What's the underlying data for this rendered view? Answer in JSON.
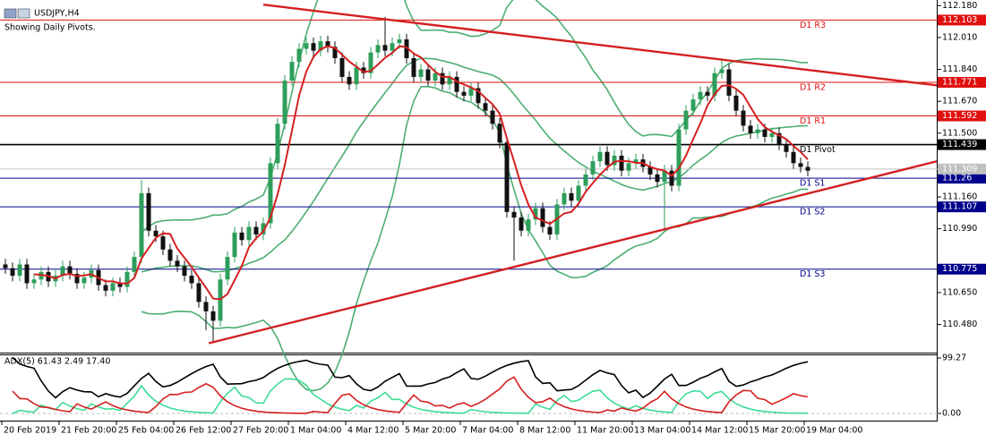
{
  "chart_data": {
    "type": "candlestick",
    "title": "USDJPY,H4",
    "subtitle": "Showing Daily Pivots.",
    "colors": {
      "bull": "#2e9e5b",
      "bear": "#111111",
      "ma": "#d42020",
      "bands": "#4cae72",
      "trend": "#d42020",
      "adx": "#000000",
      "plus_di": "#3ddc97",
      "minus_di": "#d42020"
    },
    "categories": [
      "20 Feb 2019",
      null,
      null,
      null,
      null,
      null,
      null,
      null,
      "21 Feb 20:00",
      null,
      null,
      null,
      null,
      null,
      null,
      null,
      "25 Feb 04:00",
      null,
      null,
      null,
      null,
      null,
      null,
      null,
      "26 Feb 12:00",
      null,
      null,
      null,
      null,
      null,
      null,
      null,
      "27 Feb 20:00",
      null,
      null,
      null,
      null,
      null,
      null,
      null,
      "1 Mar 04:00",
      null,
      null,
      null,
      null,
      null,
      null,
      null,
      "4 Mar 12:00",
      null,
      null,
      null,
      null,
      null,
      null,
      null,
      "5 Mar 20:00",
      null,
      null,
      null,
      null,
      null,
      null,
      null,
      "7 Mar 04:00",
      null,
      null,
      null,
      null,
      null,
      null,
      null,
      "8 Mar 12:00",
      null,
      null,
      null,
      null,
      null,
      null,
      null,
      "11 Mar 20:00",
      null,
      null,
      null,
      null,
      null,
      null,
      null,
      "13 Mar 04:00",
      null,
      null,
      null,
      null,
      null,
      null,
      null,
      "14 Mar 12:00",
      null,
      null,
      null,
      null,
      null,
      null,
      null,
      "15 Mar 20:00",
      null,
      null,
      null,
      null,
      null,
      null,
      null,
      "19 Mar 04:00"
    ],
    "open": [
      110.8,
      110.78,
      110.74,
      110.8,
      110.7,
      110.72,
      110.76,
      110.71,
      110.74,
      110.79,
      110.75,
      110.7,
      110.73,
      110.77,
      110.69,
      110.66,
      110.7,
      110.68,
      110.76,
      110.84,
      111.18,
      110.98,
      110.95,
      110.88,
      110.82,
      110.79,
      110.74,
      110.7,
      110.6,
      110.55,
      110.5,
      110.72,
      110.84,
      110.97,
      110.93,
      111.0,
      110.96,
      111.02,
      111.34,
      111.55,
      111.78,
      111.88,
      111.95,
      111.98,
      111.94,
      111.99,
      111.96,
      111.9,
      111.8,
      111.76,
      111.85,
      111.82,
      111.93,
      111.97,
      111.94,
      111.98,
      112.0,
      111.9,
      111.8,
      111.84,
      111.78,
      111.82,
      111.76,
      111.8,
      111.72,
      111.7,
      111.74,
      111.66,
      111.62,
      111.55,
      111.45,
      111.08,
      111.05,
      110.98,
      111.04,
      111.1,
      111.0,
      110.96,
      111.12,
      111.18,
      111.14,
      111.22,
      111.28,
      111.35,
      111.4,
      111.33,
      111.38,
      111.3,
      111.34,
      111.36,
      111.32,
      111.28,
      111.24,
      111.3,
      111.22,
      111.52,
      111.62,
      111.68,
      111.72,
      111.7,
      111.82,
      111.84,
      111.7,
      111.62,
      111.54,
      111.5,
      111.52,
      111.48,
      111.5,
      111.44,
      111.4,
      111.34,
      111.32
    ],
    "high": [
      110.83,
      110.81,
      110.83,
      110.83,
      110.75,
      110.79,
      110.79,
      110.77,
      110.82,
      110.82,
      110.78,
      110.76,
      110.8,
      110.8,
      110.72,
      110.73,
      110.73,
      110.79,
      110.87,
      111.25,
      111.21,
      111.01,
      110.98,
      110.91,
      110.85,
      110.82,
      110.77,
      110.73,
      110.63,
      110.58,
      110.75,
      110.87,
      111.0,
      111.0,
      111.03,
      111.03,
      111.05,
      111.37,
      111.58,
      111.81,
      111.91,
      111.98,
      112.01,
      112.01,
      112.02,
      112.02,
      111.99,
      111.93,
      111.83,
      111.88,
      111.88,
      111.96,
      112.0,
      112.12,
      112.01,
      112.03,
      112.03,
      111.93,
      111.87,
      111.87,
      111.85,
      111.85,
      111.83,
      111.83,
      111.75,
      111.77,
      111.77,
      111.69,
      111.65,
      111.58,
      111.48,
      111.11,
      111.08,
      111.07,
      111.13,
      111.13,
      111.03,
      111.15,
      111.21,
      111.21,
      111.25,
      111.31,
      111.38,
      111.43,
      111.43,
      111.41,
      111.41,
      111.37,
      111.39,
      111.39,
      111.35,
      111.31,
      111.33,
      111.33,
      111.55,
      111.65,
      111.71,
      111.75,
      111.75,
      111.85,
      111.9,
      111.87,
      111.73,
      111.65,
      111.57,
      111.55,
      111.55,
      111.53,
      111.53,
      111.47,
      111.43,
      111.37,
      111.35
    ],
    "low": [
      110.75,
      110.71,
      110.71,
      110.67,
      110.67,
      110.69,
      110.68,
      110.68,
      110.71,
      110.72,
      110.67,
      110.67,
      110.7,
      110.66,
      110.63,
      110.63,
      110.65,
      110.65,
      110.73,
      110.81,
      110.95,
      110.92,
      110.85,
      110.79,
      110.76,
      110.71,
      110.67,
      110.57,
      110.45,
      110.38,
      110.47,
      110.69,
      110.81,
      110.9,
      110.9,
      110.93,
      110.93,
      110.99,
      111.31,
      111.52,
      111.75,
      111.85,
      111.92,
      111.91,
      111.91,
      111.93,
      111.87,
      111.77,
      111.73,
      111.73,
      111.79,
      111.79,
      111.9,
      111.91,
      111.91,
      111.95,
      111.87,
      111.77,
      111.77,
      111.75,
      111.75,
      111.73,
      111.73,
      111.69,
      111.67,
      111.67,
      111.63,
      111.59,
      111.52,
      111.42,
      111.05,
      110.82,
      110.95,
      110.95,
      111.01,
      110.97,
      110.93,
      110.93,
      111.09,
      111.11,
      111.11,
      111.19,
      111.25,
      111.32,
      111.3,
      111.3,
      111.27,
      111.27,
      111.31,
      111.29,
      111.25,
      111.21,
      110.98,
      111.19,
      111.19,
      111.49,
      111.59,
      111.65,
      111.67,
      111.67,
      111.79,
      111.67,
      111.59,
      111.51,
      111.47,
      111.47,
      111.45,
      111.45,
      111.41,
      111.37,
      111.31,
      111.29,
      111.27
    ],
    "close": [
      110.78,
      110.74,
      110.8,
      110.7,
      110.72,
      110.76,
      110.71,
      110.74,
      110.79,
      110.75,
      110.7,
      110.73,
      110.77,
      110.69,
      110.66,
      110.7,
      110.68,
      110.76,
      110.84,
      111.18,
      110.98,
      110.95,
      110.88,
      110.82,
      110.79,
      110.74,
      110.7,
      110.6,
      110.55,
      110.5,
      110.72,
      110.84,
      110.97,
      110.93,
      111.0,
      110.96,
      111.02,
      111.34,
      111.55,
      111.78,
      111.88,
      111.95,
      111.98,
      111.94,
      111.99,
      111.96,
      111.9,
      111.8,
      111.76,
      111.85,
      111.82,
      111.93,
      111.97,
      111.94,
      111.98,
      112.0,
      111.9,
      111.8,
      111.84,
      111.78,
      111.82,
      111.76,
      111.8,
      111.72,
      111.7,
      111.74,
      111.66,
      111.62,
      111.55,
      111.45,
      111.08,
      111.05,
      110.98,
      111.04,
      111.1,
      111.0,
      110.96,
      111.12,
      111.18,
      111.14,
      111.22,
      111.28,
      111.35,
      111.4,
      111.33,
      111.38,
      111.3,
      111.34,
      111.36,
      111.32,
      111.28,
      111.24,
      111.3,
      111.22,
      111.52,
      111.62,
      111.68,
      111.72,
      111.7,
      111.82,
      111.84,
      111.7,
      111.62,
      111.54,
      111.5,
      111.52,
      111.48,
      111.5,
      111.44,
      111.4,
      111.34,
      111.32,
      111.3
    ],
    "ylim": [
      110.33,
      112.21
    ],
    "yticks": [
      {
        "value": 112.18,
        "label": "112.180"
      },
      {
        "value": 112.01,
        "label": "112.010"
      },
      {
        "value": 111.84,
        "label": "111.840"
      },
      {
        "value": 111.67,
        "label": "111.670"
      },
      {
        "value": 111.5,
        "label": "111.500"
      },
      {
        "value": 111.16,
        "label": "111.160"
      },
      {
        "value": 110.99,
        "label": "110.990"
      },
      {
        "value": 110.65,
        "label": "110.650"
      },
      {
        "value": 110.48,
        "label": "110.480"
      }
    ],
    "pivots": [
      {
        "name": "D1 R3",
        "value": 112.103,
        "color": "#e01010"
      },
      {
        "name": "D1 R2",
        "value": 111.771,
        "color": "#e01010"
      },
      {
        "name": "D1 R1",
        "value": 111.592,
        "color": "#e01010"
      },
      {
        "name": "D1 Pivot",
        "value": 111.439,
        "color": "#000000"
      },
      {
        "name": "D1 S1",
        "value": 111.26,
        "color": "#00008b"
      },
      {
        "name": "D1 S2",
        "value": 111.107,
        "color": "#00008b"
      },
      {
        "name": "D1 S3",
        "value": 110.775,
        "color": "#00008b"
      }
    ],
    "current_price": 111.309,
    "trendlines": [
      {
        "x": [
          36,
          130
        ],
        "y": [
          112.185,
          111.755
        ]
      },
      {
        "x": [
          28.4,
          130
        ],
        "y": [
          110.38,
          111.35
        ]
      }
    ],
    "adx": {
      "title": "ADX(5) 61.43 2.49 17.40",
      "ylim": [
        0,
        99.27
      ],
      "yticks": [
        {
          "value": 99.27,
          "label": "99.27"
        },
        {
          "value": 0,
          "label": "0.00"
        }
      ]
    }
  }
}
